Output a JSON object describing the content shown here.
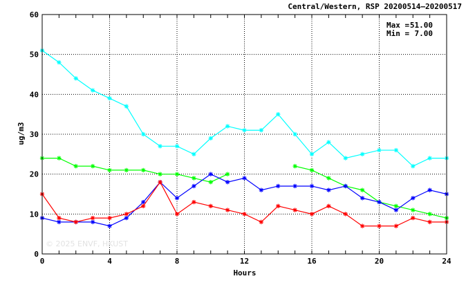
{
  "chart_data": {
    "type": "line",
    "title": "Central/Western, RSP 20200514—20200517",
    "xlabel": "Hours",
    "ylabel": "ug/m3",
    "xlim": [
      0,
      24
    ],
    "ylim": [
      0,
      60
    ],
    "x_ticks": [
      0,
      4,
      8,
      12,
      16,
      20,
      24
    ],
    "y_ticks": [
      0,
      10,
      20,
      30,
      40,
      50,
      60
    ],
    "grid": true,
    "grid_style": "dotted",
    "stats": {
      "max_label": "Max =",
      "max_value": "51.00",
      "min_label": "Min =",
      "min_value": "7.00"
    },
    "watermark": "© 2025 ENVF, HKUST",
    "x": [
      0,
      1,
      2,
      3,
      4,
      5,
      6,
      7,
      8,
      9,
      10,
      11,
      12,
      13,
      14,
      15,
      16,
      17,
      18,
      19,
      20,
      21,
      22,
      23,
      24
    ],
    "series": [
      {
        "color": "#00ffff",
        "values": [
          51,
          48,
          44,
          41,
          39,
          37,
          30,
          27,
          27,
          25,
          29,
          32,
          31,
          31,
          35,
          30,
          25,
          28,
          24,
          25,
          26,
          26,
          22,
          24,
          24
        ]
      },
      {
        "color": "#00ff00",
        "values": [
          24,
          24,
          22,
          22,
          21,
          21,
          21,
          20,
          20,
          19,
          18,
          20,
          null,
          null,
          null,
          22,
          21,
          19,
          17,
          16,
          13,
          12,
          11,
          10,
          9
        ]
      },
      {
        "color": "#0000ff",
        "values": [
          9,
          8,
          8,
          8,
          7,
          9,
          13,
          18,
          14,
          17,
          20,
          18,
          19,
          16,
          17,
          17,
          17,
          16,
          17,
          14,
          13,
          11,
          14,
          16,
          15
        ]
      },
      {
        "color": "#ff0000",
        "values": [
          15,
          9,
          8,
          9,
          9,
          10,
          12,
          18,
          10,
          13,
          12,
          11,
          10,
          8,
          12,
          11,
          10,
          12,
          10,
          7,
          7,
          7,
          9,
          8,
          8
        ]
      }
    ]
  }
}
